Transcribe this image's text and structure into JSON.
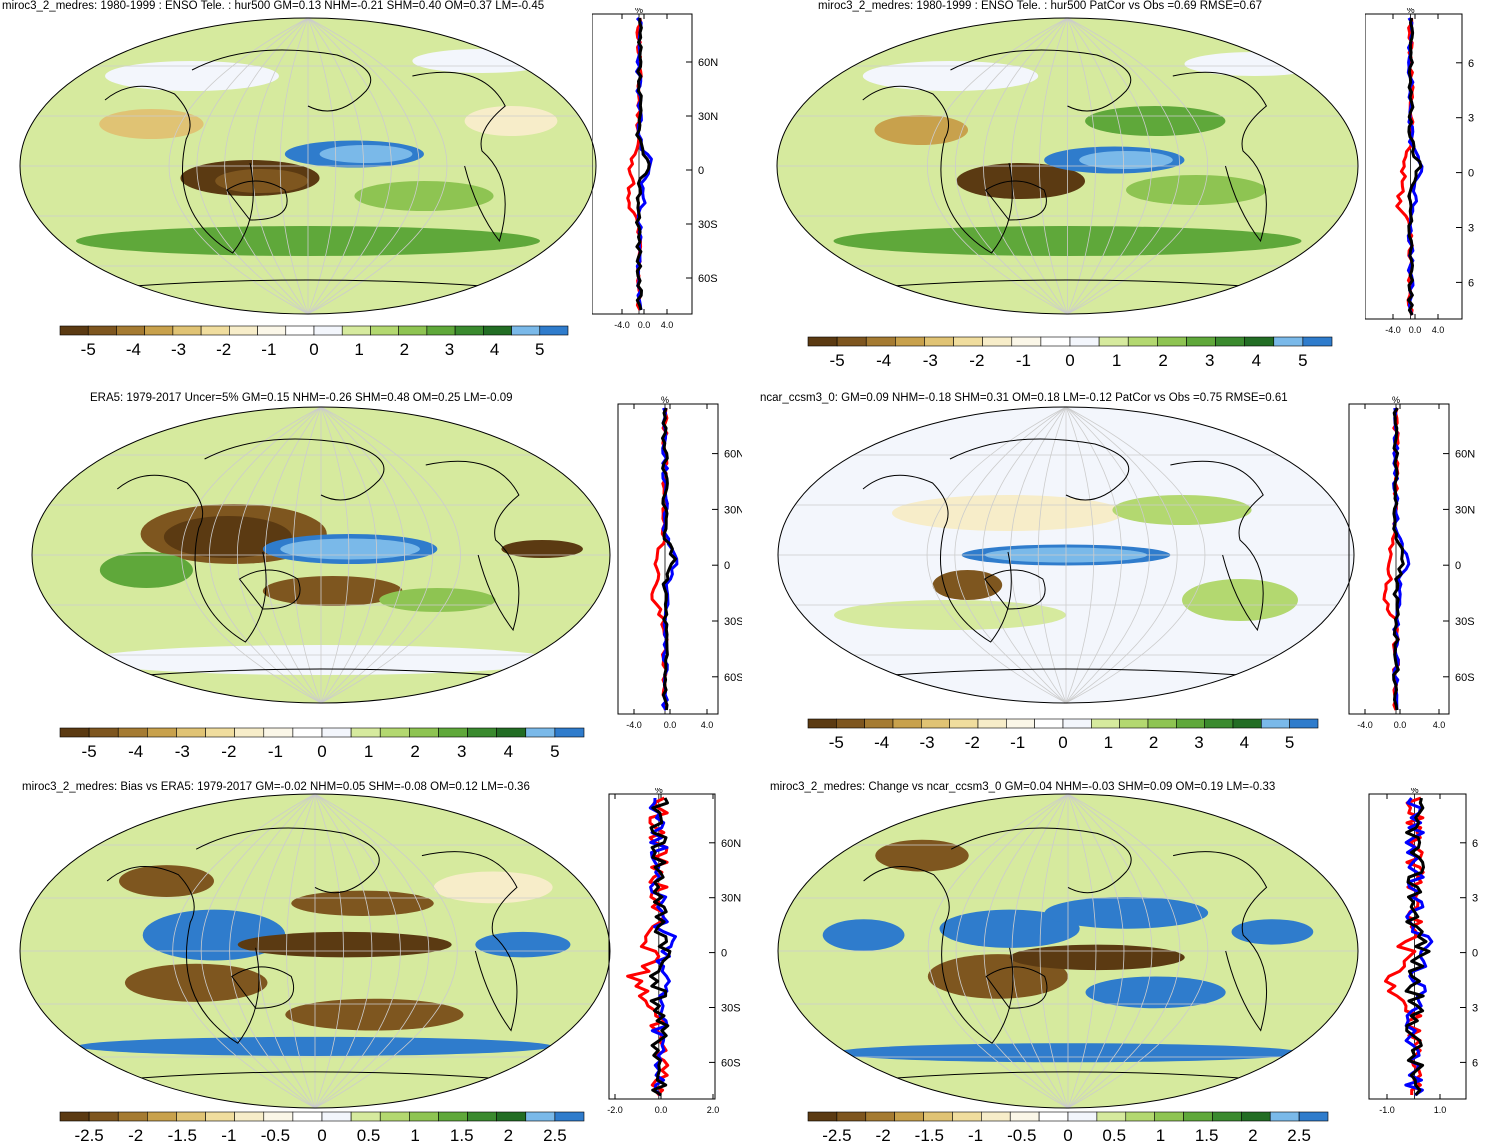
{
  "palette": [
    "#5b3a12",
    "#7e561f",
    "#a57b32",
    "#c8a14c",
    "#e0c374",
    "#f0dd9e",
    "#f7edc9",
    "#fbf7e8",
    "#ffffff",
    "#f3f6fc",
    "#d6ea9e",
    "#b3d870",
    "#8ec452",
    "#5fa83a",
    "#3a8a2e",
    "#226d24",
    "#7ab9e9",
    "#2f7ccc"
  ],
  "colors": {
    "land_outline": "#000000",
    "grid": "#cccccc",
    "obs": "#000000",
    "model": "#ff0000",
    "alt": "#0000ff"
  },
  "panels": [
    {
      "id": "p1",
      "title": "miroc3_2_medres: 1980-1999 : ENSO Tele. : hur500 GM=0.13 NHM=-0.21 SHM=0.40 OM=0.37 LM=-0.45",
      "zonal": {
        "unit": "%",
        "lat_labels": [
          "60N",
          "30N",
          "0",
          "30S",
          "60S"
        ],
        "x_ticks": [
          "-4.0",
          "0.0",
          "4.0"
        ]
      },
      "colorbar": [
        "-5",
        "-4",
        "-3",
        "-2",
        "-1",
        "0",
        "1",
        "2",
        "3",
        "4",
        "5"
      ]
    },
    {
      "id": "p2",
      "title": "miroc3_2_medres: 1980-1999 : ENSO Tele. : hur500 PatCor vs Obs =0.69 RMSE=0.67",
      "zonal": {
        "unit": "%",
        "lat_labels": [
          "6",
          "3",
          "0",
          "3",
          "6"
        ],
        "x_ticks": [
          "-4.0",
          "0.0",
          "4.0"
        ]
      },
      "colorbar": [
        "-5",
        "-4",
        "-3",
        "-2",
        "-1",
        "0",
        "1",
        "2",
        "3",
        "4",
        "5"
      ]
    },
    {
      "id": "p3",
      "title": "ERA5: 1979-2017 Uncer=5% GM=0.15 NHM=-0.26 SHM=0.48 OM=0.25 LM=-0.09",
      "zonal": {
        "unit": "%",
        "lat_labels": [
          "60N",
          "30N",
          "0",
          "30S",
          "60S"
        ],
        "x_ticks": [
          "-4.0",
          "0.0",
          "4.0"
        ]
      },
      "colorbar": [
        "-5",
        "-4",
        "-3",
        "-2",
        "-1",
        "0",
        "1",
        "2",
        "3",
        "4",
        "5"
      ]
    },
    {
      "id": "p4",
      "title": "ncar_ccsm3_0: GM=0.09 NHM=-0.18 SHM=0.31 OM=0.18 LM=-0.12 PatCor vs Obs =0.75 RMSE=0.61",
      "zonal": {
        "unit": "%",
        "lat_labels": [
          "60N",
          "30N",
          "0",
          "30S",
          "60S"
        ],
        "x_ticks": [
          "-4.0",
          "0.0",
          "4.0"
        ]
      },
      "colorbar": [
        "-5",
        "-4",
        "-3",
        "-2",
        "-1",
        "0",
        "1",
        "2",
        "3",
        "4",
        "5"
      ]
    },
    {
      "id": "p5",
      "title": "miroc3_2_medres: Bias vs ERA5: 1979-2017 GM=-0.02 NHM=0.05 SHM=-0.08 OM=0.12 LM=-0.36",
      "zonal": {
        "unit": "%",
        "lat_labels": [
          "60N",
          "30N",
          "0",
          "30S",
          "60S"
        ],
        "x_ticks": [
          "-2.0",
          "0.0",
          "2.0"
        ]
      },
      "colorbar": [
        "-2.5",
        "-2",
        "-1.5",
        "-1",
        "-0.5",
        "0",
        "0.5",
        "1",
        "1.5",
        "2",
        "2.5"
      ]
    },
    {
      "id": "p6",
      "title": "miroc3_2_medres: Change vs ncar_ccsm3_0 GM=0.04 NHM=-0.03 SHM=0.09 OM=0.19 LM=-0.33",
      "zonal": {
        "unit": "%",
        "lat_labels": [
          "6",
          "3",
          "0",
          "3",
          "6"
        ],
        "x_ticks": [
          "-1.0",
          "1.0"
        ]
      },
      "colorbar": [
        "-2.5",
        "-2",
        "-1.5",
        "-1",
        "-0.5",
        "0",
        "0.5",
        "1",
        "1.5",
        "2",
        "2.5"
      ]
    }
  ]
}
